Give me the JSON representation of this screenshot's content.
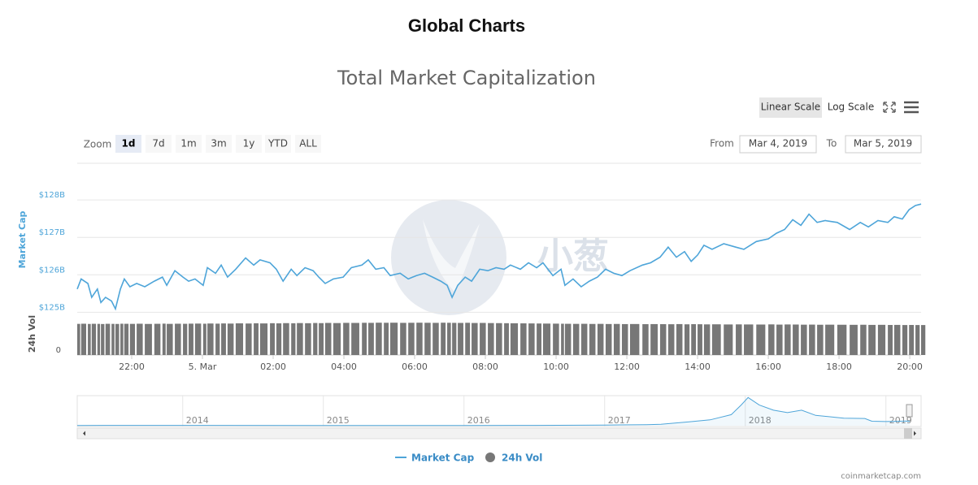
{
  "page": {
    "title": "Global Charts",
    "credit": "coinmarketcap.com",
    "watermark": "小葱"
  },
  "controls": {
    "zoom_label": "Zoom",
    "zoom_buttons": [
      "1d",
      "7d",
      "1m",
      "3m",
      "1y",
      "YTD",
      "ALL"
    ],
    "zoom_active": 0,
    "scale_buttons": [
      "Linear Scale",
      "Log Scale"
    ],
    "scale_active": 0,
    "from_label": "From",
    "from": "Mar 4, 2019",
    "to_label": "To",
    "to": "Mar 5, 2019"
  },
  "chart_data": {
    "type": "line",
    "title": "Total Market Capitalization",
    "ylabel": "Market Cap",
    "y2label": "24h Vol",
    "grid": true,
    "log_scale": false,
    "legend": "bottom",
    "x": [
      20.46,
      20.57,
      20.76,
      20.87,
      21.03,
      21.13,
      21.26,
      21.43,
      21.54,
      21.68,
      21.79,
      21.95,
      22.14,
      22.37,
      22.64,
      22.87,
      22.99,
      23.22,
      23.45,
      23.61,
      23.79,
      24.02,
      24.14,
      24.37,
      24.53,
      24.71,
      24.94,
      25.22,
      25.45,
      25.63,
      25.91,
      26.09,
      26.28,
      26.51,
      26.67,
      26.9,
      27.13,
      27.29,
      27.47,
      27.7,
      27.98,
      28.21,
      28.51,
      28.69,
      28.9,
      29.13,
      29.31,
      29.59,
      29.82,
      30.05,
      30.28,
      30.51,
      30.74,
      30.92,
      31.06,
      31.22,
      31.43,
      31.61,
      31.84,
      32.07,
      32.3,
      32.53,
      32.71,
      32.99,
      33.22,
      33.45,
      33.63,
      33.91,
      34.14,
      34.25,
      34.48,
      34.71,
      34.94,
      35.17,
      35.4,
      35.63,
      35.86,
      36.09,
      36.44,
      36.67,
      36.94,
      37.17,
      37.4,
      37.63,
      37.82,
      38.0,
      38.18,
      38.41,
      38.74,
      39.08,
      39.31,
      39.66,
      40.0,
      40.23,
      40.46,
      40.69,
      40.92,
      41.15,
      41.38,
      41.61,
      41.95,
      42.3,
      42.6,
      42.83,
      43.1,
      43.38,
      43.56,
      43.79,
      43.98,
      44.16,
      44.32
    ],
    "series": [
      {
        "name": "Market Cap",
        "color": "#4ea5d9",
        "values": [
          125.62,
          125.89,
          125.77,
          125.4,
          125.62,
          125.26,
          125.4,
          125.3,
          125.09,
          125.62,
          125.89,
          125.68,
          125.77,
          125.68,
          125.83,
          125.94,
          125.72,
          126.11,
          125.94,
          125.83,
          125.89,
          125.72,
          126.19,
          126.04,
          126.26,
          125.94,
          126.15,
          126.45,
          126.26,
          126.4,
          126.32,
          126.15,
          125.83,
          126.15,
          125.98,
          126.19,
          126.11,
          125.94,
          125.77,
          125.89,
          125.94,
          126.19,
          126.26,
          126.4,
          126.15,
          126.19,
          125.98,
          126.04,
          125.89,
          125.98,
          126.04,
          125.94,
          125.83,
          125.72,
          125.4,
          125.72,
          125.94,
          125.83,
          126.15,
          126.11,
          126.19,
          126.15,
          126.26,
          126.15,
          126.32,
          126.19,
          126.32,
          125.98,
          126.15,
          125.72,
          125.89,
          125.68,
          125.83,
          125.94,
          126.15,
          126.04,
          125.98,
          126.11,
          126.26,
          126.32,
          126.47,
          126.74,
          126.47,
          126.62,
          126.36,
          126.53,
          126.79,
          126.68,
          126.83,
          126.74,
          126.68,
          126.89,
          126.96,
          127.11,
          127.21,
          127.47,
          127.32,
          127.62,
          127.4,
          127.45,
          127.4,
          127.21,
          127.4,
          127.28,
          127.45,
          127.4,
          127.55,
          127.49,
          127.74,
          127.85,
          127.89
        ]
      },
      {
        "name": "24h Vol",
        "color": "#777777",
        "type": "bar",
        "axis": "y2",
        "values": [
          42.6,
          42.8,
          42.5,
          42.7,
          42.6,
          42.4,
          42.7,
          42.6,
          42.5,
          42.8,
          42.7,
          42.6,
          42.8,
          42.5,
          42.7,
          42.9,
          42.6,
          42.8,
          42.7,
          42.9,
          43.0,
          42.8,
          43.1,
          42.9,
          43.2,
          43.0,
          43.3,
          43.1,
          43.4,
          43.2,
          43.5,
          43.3,
          43.6,
          43.4,
          43.7,
          43.5,
          43.8,
          43.6,
          43.9,
          43.7,
          44.0,
          43.9,
          44.1,
          44.0,
          44.2,
          44.1,
          44.2,
          44.0,
          44.1,
          44.2,
          44.1,
          44.0,
          44.2,
          44.1,
          44.0,
          43.9,
          44.1,
          43.8,
          43.9,
          43.7,
          43.6,
          43.5,
          43.4,
          43.3,
          43.2,
          43.1,
          43.0,
          42.9,
          42.8,
          42.7,
          42.6,
          42.7,
          42.5,
          42.6,
          42.4,
          42.5,
          42.3,
          42.4,
          42.2,
          42.3,
          42.2,
          42.1,
          42.3,
          42.0,
          42.2,
          42.1,
          41.9,
          42.0,
          41.8,
          41.9,
          41.8,
          41.7,
          41.9,
          41.6,
          41.8,
          41.7,
          41.5,
          41.6,
          41.4,
          41.5,
          41.4,
          41.3,
          41.4,
          41.2,
          41.3,
          41.1,
          41.2,
          41.0,
          41.1,
          41.0,
          41.0
        ]
      }
    ],
    "xlim": [
      20.46,
      44.32
    ],
    "xticks": [
      {
        "value": 22,
        "label": "22:00"
      },
      {
        "value": 24,
        "label": "5. Mar"
      },
      {
        "value": 26,
        "label": "02:00"
      },
      {
        "value": 28,
        "label": "04:00"
      },
      {
        "value": 30,
        "label": "06:00"
      },
      {
        "value": 32,
        "label": "08:00"
      },
      {
        "value": 34,
        "label": "10:00"
      },
      {
        "value": 36,
        "label": "12:00"
      },
      {
        "value": 38,
        "label": "14:00"
      },
      {
        "value": 40,
        "label": "16:00"
      },
      {
        "value": 42,
        "label": "18:00"
      },
      {
        "value": 44,
        "label": "20:00"
      }
    ],
    "ylim": [
      124.9,
      129.0
    ],
    "yticks": [
      {
        "value": 125,
        "label": "$125B"
      },
      {
        "value": 126,
        "label": "$126B"
      },
      {
        "value": 127,
        "label": "$127B"
      },
      {
        "value": 128,
        "label": "$128B"
      }
    ],
    "y2lim": [
      0,
      50
    ],
    "y2ticks": [
      0
    ],
    "navigator": {
      "color": "#4ea5d9",
      "x": [
        2013.25,
        2014,
        2015,
        2016,
        2016.5,
        2017,
        2017.3,
        2017.4,
        2017.6,
        2017.75,
        2017.9,
        2017.97,
        2018.02,
        2018.1,
        2018.2,
        2018.3,
        2018.4,
        2018.5,
        2018.7,
        2018.85,
        2018.9,
        2019.0,
        2019.15,
        2019.17
      ],
      "values": [
        8,
        10,
        6,
        7,
        10,
        18,
        30,
        40,
        110,
        170,
        320,
        600,
        820,
        600,
        450,
        380,
        450,
        300,
        220,
        210,
        130,
        120,
        135,
        128
      ],
      "xlim": [
        2013.25,
        2019.25
      ],
      "ylim": [
        0,
        850
      ],
      "xticks": [
        {
          "value": 2014,
          "label": "2014"
        },
        {
          "value": 2015,
          "label": "2015"
        },
        {
          "value": 2016,
          "label": "2016"
        },
        {
          "value": 2017,
          "label": "2017"
        },
        {
          "value": 2018,
          "label": "2018"
        },
        {
          "value": 2019,
          "label": "2019"
        }
      ]
    }
  }
}
